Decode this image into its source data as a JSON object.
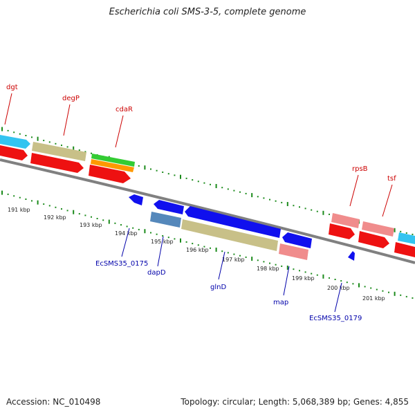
{
  "title": "Escherichia coli SMS-3-5, complete genome",
  "footer": {
    "accession": "Accession: NC_010498",
    "summary": "Topology: circular; Length: 5,068,389 bp; Genes: 4,855"
  },
  "colors": {
    "backbone": "#808080",
    "ticks": "#1a8a1a",
    "gene_red": "#ee1111",
    "gene_blue": "#1010ee",
    "gene_khaki": "#c8c088",
    "gene_cyan": "#33c4f0",
    "gene_pink": "#f08c8c",
    "gene_steel": "#5588bb",
    "gene_green": "#33cc33",
    "gene_orange": "#ff9900",
    "label_top": "#cc0000",
    "label_bottom": "#0000aa"
  },
  "kbp_labels": [
    "191 kbp",
    "192 kbp",
    "193 kbp",
    "194 kbp",
    "195 kbp",
    "196 kbp",
    "197 kbp",
    "198 kbp",
    "199 kbp",
    "200 kbp",
    "201 kbp"
  ],
  "top_gene_labels": [
    "dgt",
    "degP",
    "cdaR",
    "rpsB",
    "tsf"
  ],
  "bottom_gene_labels": [
    "EcSMS35_0175",
    "dapD",
    "glnD",
    "map",
    "EcSMS35_0179"
  ]
}
